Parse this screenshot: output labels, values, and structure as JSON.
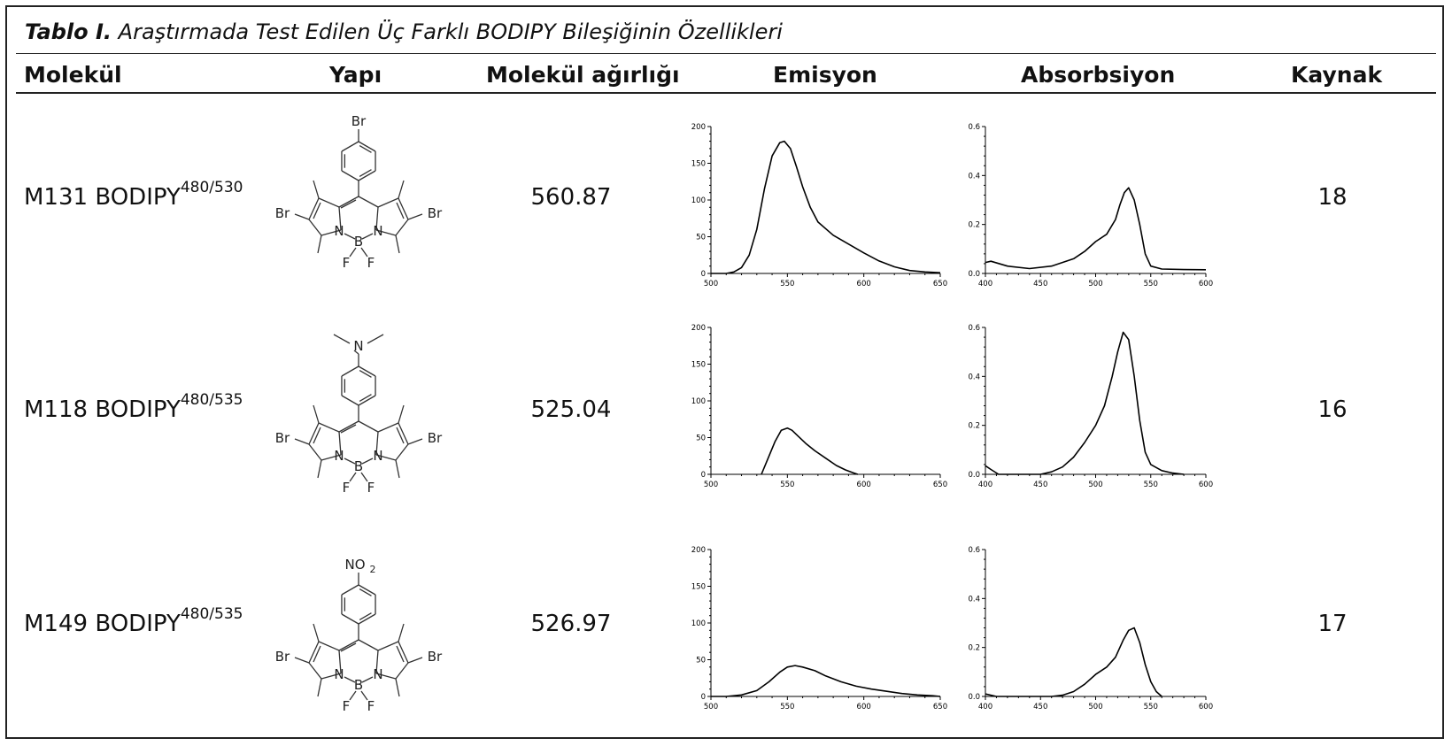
{
  "caption": {
    "label": "Tablo I.",
    "text": "Araştırmada Test Edilen Üç Farklı BODIPY Bileşiğinin Özellikleri"
  },
  "headers": [
    "Molekül",
    "Yapı",
    "Molekül ağırlığı",
    "Emisyon",
    "Absorbsiyon",
    "Kaynak"
  ],
  "rows": [
    {
      "name": "M131 BODIPY",
      "sup": "480/530",
      "weight": "560.87",
      "ref": "18",
      "substituent": "Br"
    },
    {
      "name": "M118 BODIPY",
      "sup": "480/535",
      "weight": "525.04",
      "ref": "16",
      "substituent": "N(CH3)2"
    },
    {
      "name": "M149 BODIPY",
      "sup": "480/535",
      "weight": "526.97",
      "ref": "17",
      "substituent": "NO2"
    }
  ],
  "structure_labels": {
    "br": "Br",
    "n": "N",
    "b": "B",
    "f": "F",
    "no2": "NO",
    "no2_sub": "2"
  },
  "chart_data": [
    {
      "type": "line",
      "chart": "emission-m131",
      "xlim": [
        500,
        650
      ],
      "ylim": [
        0,
        200
      ],
      "xticks": [
        "500",
        "550",
        "600",
        "650"
      ],
      "yticks": [
        "0",
        "50",
        "100",
        "150",
        "200"
      ],
      "x": [
        500,
        510,
        515,
        520,
        525,
        530,
        535,
        540,
        545,
        548,
        552,
        556,
        560,
        565,
        570,
        580,
        590,
        600,
        610,
        620,
        630,
        640,
        650
      ],
      "y": [
        0,
        0,
        2,
        8,
        25,
        60,
        115,
        160,
        178,
        180,
        170,
        145,
        118,
        90,
        70,
        52,
        40,
        28,
        17,
        9,
        4,
        2,
        1
      ]
    },
    {
      "type": "line",
      "chart": "absorption-m131",
      "xlim": [
        400,
        600
      ],
      "ylim": [
        0,
        0.6
      ],
      "xticks": [
        "400",
        "450",
        "500",
        "550",
        "600"
      ],
      "yticks": [
        "0.0",
        "0.2",
        "0.4",
        "0.6"
      ],
      "x": [
        400,
        405,
        420,
        440,
        460,
        480,
        490,
        500,
        510,
        518,
        522,
        526,
        530,
        535,
        540,
        545,
        550,
        560,
        580,
        600
      ],
      "y": [
        0.045,
        0.05,
        0.03,
        0.02,
        0.03,
        0.06,
        0.09,
        0.13,
        0.16,
        0.22,
        0.28,
        0.33,
        0.35,
        0.3,
        0.2,
        0.08,
        0.03,
        0.018,
        0.016,
        0.015
      ]
    },
    {
      "type": "line",
      "chart": "emission-m118",
      "xlim": [
        500,
        650
      ],
      "ylim": [
        0,
        200
      ],
      "xticks": [
        "500",
        "550",
        "600",
        "650"
      ],
      "yticks": [
        "0",
        "50",
        "100",
        "150",
        "200"
      ],
      "x": [
        533,
        538,
        542,
        546,
        550,
        553,
        557,
        562,
        568,
        575,
        582,
        588,
        593,
        596
      ],
      "y": [
        0,
        25,
        45,
        60,
        63,
        60,
        52,
        42,
        32,
        22,
        12,
        6,
        2,
        0
      ]
    },
    {
      "type": "line",
      "chart": "absorption-m118",
      "xlim": [
        400,
        600
      ],
      "ylim": [
        0,
        0.6
      ],
      "xticks": [
        "400",
        "450",
        "500",
        "550",
        "600"
      ],
      "yticks": [
        "0.0",
        "0.2",
        "0.4",
        "0.6"
      ],
      "x": [
        400,
        405,
        412,
        420,
        440,
        450,
        460,
        470,
        480,
        490,
        500,
        508,
        515,
        520,
        525,
        530,
        535,
        540,
        545,
        550,
        560,
        570,
        580
      ],
      "y": [
        0.035,
        0.02,
        0.0,
        0.0,
        0.0,
        0.0,
        0.01,
        0.03,
        0.07,
        0.13,
        0.2,
        0.28,
        0.4,
        0.5,
        0.58,
        0.55,
        0.4,
        0.22,
        0.09,
        0.04,
        0.015,
        0.005,
        0.0
      ]
    },
    {
      "type": "line",
      "chart": "emission-m149",
      "xlim": [
        500,
        650
      ],
      "ylim": [
        0,
        200
      ],
      "xticks": [
        "500",
        "550",
        "600",
        "650"
      ],
      "yticks": [
        "0",
        "50",
        "100",
        "150",
        "200"
      ],
      "x": [
        500,
        510,
        520,
        530,
        538,
        545,
        550,
        555,
        560,
        568,
        575,
        585,
        595,
        605,
        615,
        625,
        635,
        645,
        650
      ],
      "y": [
        0,
        0,
        2,
        8,
        20,
        33,
        40,
        42,
        40,
        35,
        28,
        20,
        14,
        10,
        7,
        4,
        2,
        1,
        0
      ]
    },
    {
      "type": "line",
      "chart": "absorption-m149",
      "xlim": [
        400,
        600
      ],
      "ylim": [
        0,
        0.6
      ],
      "xticks": [
        "400",
        "450",
        "500",
        "550",
        "600"
      ],
      "yticks": [
        "0.0",
        "0.2",
        "0.4",
        "0.6"
      ],
      "x": [
        400,
        410,
        420,
        440,
        460,
        470,
        480,
        490,
        500,
        510,
        518,
        525,
        530,
        535,
        540,
        545,
        550,
        555,
        560
      ],
      "y": [
        0.01,
        0.0,
        0.0,
        0.0,
        0.0,
        0.005,
        0.02,
        0.05,
        0.09,
        0.12,
        0.16,
        0.23,
        0.27,
        0.28,
        0.22,
        0.13,
        0.06,
        0.02,
        0.0
      ]
    }
  ]
}
